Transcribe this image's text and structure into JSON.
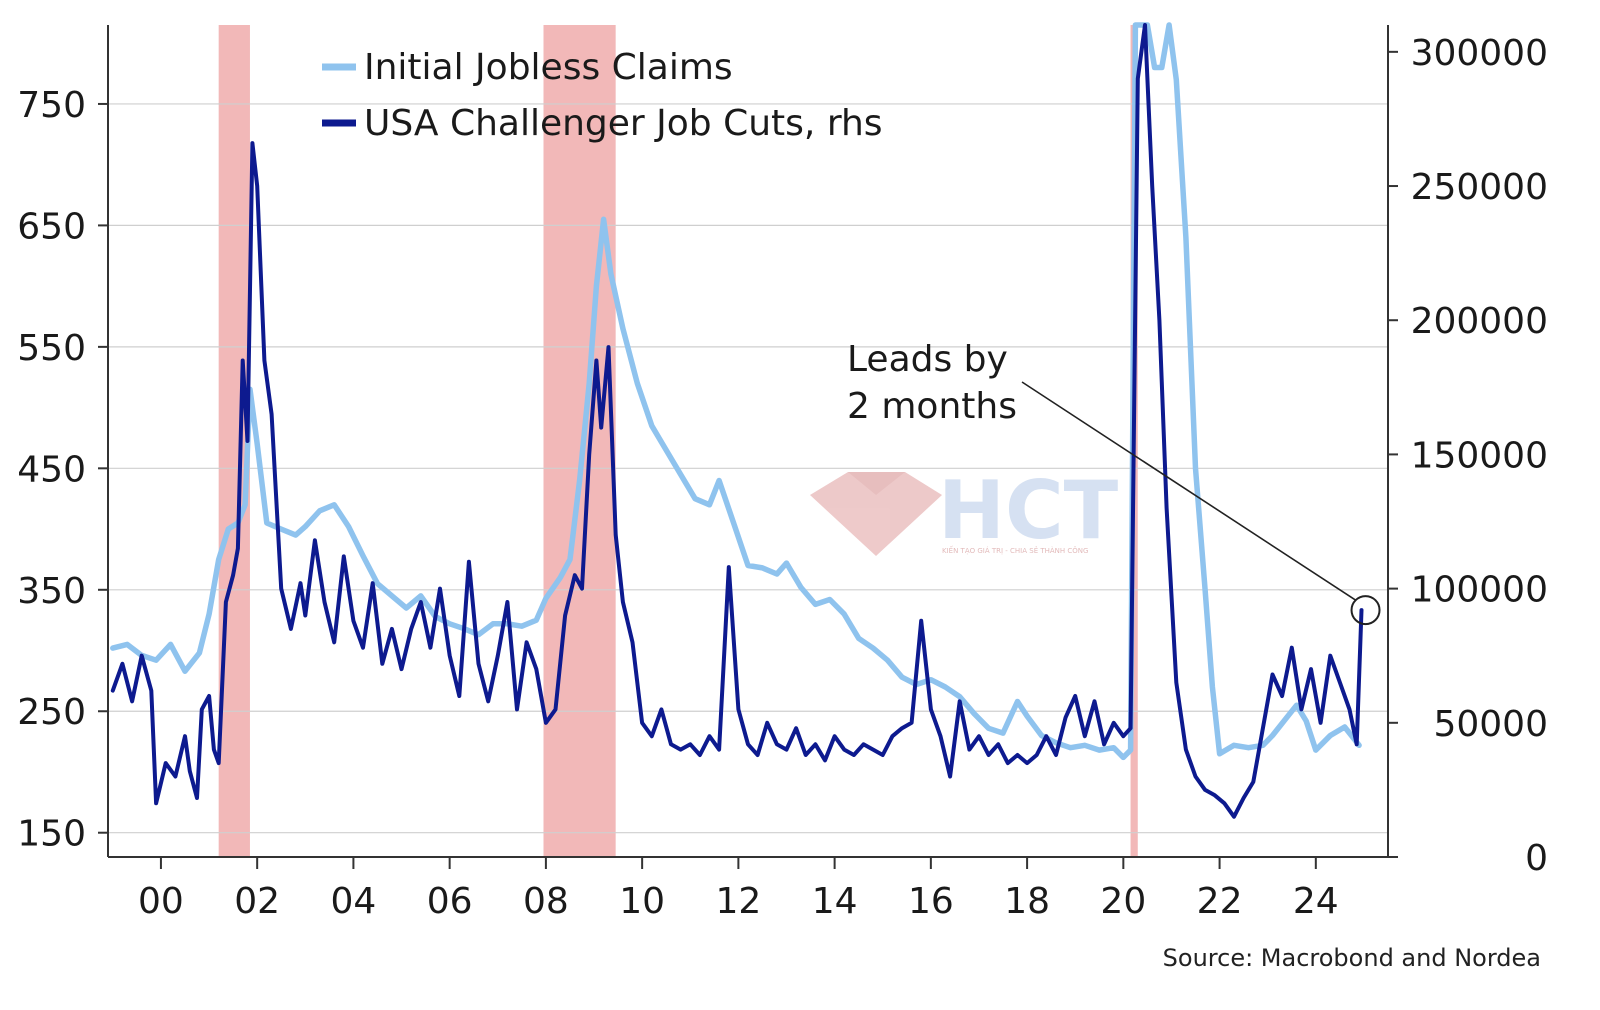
{
  "chart_data": {
    "type": "line",
    "title": "",
    "xlabel": "",
    "ylabel_left": "",
    "ylabel_right": "",
    "x_ticks": [
      "00",
      "02",
      "04",
      "06",
      "08",
      "10",
      "12",
      "14",
      "16",
      "18",
      "20",
      "22",
      "24"
    ],
    "y_left_ticks": [
      "750",
      "650",
      "550",
      "450",
      "350",
      "250",
      "150"
    ],
    "y_right_ticks": [
      "300000",
      "250000",
      "200000",
      "150000",
      "100000",
      "50000",
      "0"
    ],
    "ylim_left": [
      130,
      815
    ],
    "ylim_right": [
      0,
      310000
    ],
    "xlim": [
      1998.9,
      2025.5
    ],
    "grid": "horizontal",
    "legend_position": "top-left",
    "recession_shading": [
      [
        2001.2,
        2001.85
      ],
      [
        2007.95,
        2009.45
      ],
      [
        2020.15,
        2020.3
      ]
    ],
    "series": [
      {
        "name": "Initial Jobless Claims",
        "axis": "left",
        "color": "#8fc3ee",
        "points": [
          [
            1999.0,
            302
          ],
          [
            1999.3,
            305
          ],
          [
            1999.6,
            296
          ],
          [
            1999.9,
            292
          ],
          [
            2000.2,
            305
          ],
          [
            2000.5,
            283
          ],
          [
            2000.8,
            298
          ],
          [
            2001.0,
            330
          ],
          [
            2001.2,
            375
          ],
          [
            2001.4,
            400
          ],
          [
            2001.6,
            405
          ],
          [
            2001.75,
            420
          ],
          [
            2001.85,
            515
          ],
          [
            2002.0,
            470
          ],
          [
            2002.2,
            405
          ],
          [
            2002.5,
            400
          ],
          [
            2002.8,
            395
          ],
          [
            2003.0,
            402
          ],
          [
            2003.3,
            415
          ],
          [
            2003.6,
            420
          ],
          [
            2003.9,
            402
          ],
          [
            2004.2,
            378
          ],
          [
            2004.5,
            355
          ],
          [
            2004.8,
            345
          ],
          [
            2005.1,
            335
          ],
          [
            2005.4,
            345
          ],
          [
            2005.7,
            328
          ],
          [
            2006.0,
            322
          ],
          [
            2006.3,
            318
          ],
          [
            2006.6,
            313
          ],
          [
            2006.9,
            322
          ],
          [
            2007.2,
            322
          ],
          [
            2007.5,
            320
          ],
          [
            2007.8,
            325
          ],
          [
            2008.0,
            343
          ],
          [
            2008.3,
            360
          ],
          [
            2008.5,
            375
          ],
          [
            2008.7,
            440
          ],
          [
            2008.9,
            520
          ],
          [
            2009.05,
            600
          ],
          [
            2009.2,
            655
          ],
          [
            2009.35,
            610
          ],
          [
            2009.6,
            565
          ],
          [
            2009.9,
            520
          ],
          [
            2010.2,
            485
          ],
          [
            2010.5,
            465
          ],
          [
            2010.8,
            445
          ],
          [
            2011.1,
            425
          ],
          [
            2011.4,
            420
          ],
          [
            2011.6,
            440
          ],
          [
            2011.9,
            405
          ],
          [
            2012.2,
            370
          ],
          [
            2012.5,
            368
          ],
          [
            2012.8,
            363
          ],
          [
            2013.0,
            372
          ],
          [
            2013.3,
            352
          ],
          [
            2013.6,
            338
          ],
          [
            2013.9,
            342
          ],
          [
            2014.2,
            330
          ],
          [
            2014.5,
            310
          ],
          [
            2014.8,
            302
          ],
          [
            2015.1,
            292
          ],
          [
            2015.4,
            278
          ],
          [
            2015.7,
            272
          ],
          [
            2016.0,
            276
          ],
          [
            2016.3,
            270
          ],
          [
            2016.6,
            262
          ],
          [
            2016.9,
            248
          ],
          [
            2017.2,
            236
          ],
          [
            2017.5,
            232
          ],
          [
            2017.8,
            258
          ],
          [
            2018.0,
            246
          ],
          [
            2018.3,
            230
          ],
          [
            2018.6,
            224
          ],
          [
            2018.9,
            220
          ],
          [
            2019.2,
            222
          ],
          [
            2019.5,
            218
          ],
          [
            2019.8,
            220
          ],
          [
            2020.0,
            212
          ],
          [
            2020.15,
            218
          ],
          [
            2020.25,
            815
          ],
          [
            2020.5,
            815
          ],
          [
            2020.65,
            780
          ],
          [
            2020.8,
            780
          ],
          [
            2020.95,
            815
          ],
          [
            2021.1,
            770
          ],
          [
            2021.3,
            640
          ],
          [
            2021.5,
            450
          ],
          [
            2021.7,
            350
          ],
          [
            2021.85,
            270
          ],
          [
            2022.0,
            215
          ],
          [
            2022.3,
            222
          ],
          [
            2022.6,
            220
          ],
          [
            2022.9,
            222
          ],
          [
            2023.1,
            230
          ],
          [
            2023.4,
            245
          ],
          [
            2023.6,
            255
          ],
          [
            2023.8,
            242
          ],
          [
            2024.0,
            218
          ],
          [
            2024.3,
            230
          ],
          [
            2024.6,
            237
          ],
          [
            2024.9,
            222
          ]
        ]
      },
      {
        "name": "USA Challenger Job Cuts, rhs",
        "axis": "right",
        "color": "#0d1a8f",
        "points": [
          [
            1999.0,
            62000
          ],
          [
            1999.2,
            72000
          ],
          [
            1999.4,
            58000
          ],
          [
            1999.6,
            75000
          ],
          [
            1999.8,
            62000
          ],
          [
            1999.9,
            20000
          ],
          [
            2000.1,
            35000
          ],
          [
            2000.3,
            30000
          ],
          [
            2000.5,
            45000
          ],
          [
            2000.6,
            32000
          ],
          [
            2000.75,
            22000
          ],
          [
            2000.85,
            55000
          ],
          [
            2001.0,
            60000
          ],
          [
            2001.1,
            40000
          ],
          [
            2001.2,
            35000
          ],
          [
            2001.35,
            95000
          ],
          [
            2001.5,
            105000
          ],
          [
            2001.6,
            115000
          ],
          [
            2001.7,
            185000
          ],
          [
            2001.8,
            155000
          ],
          [
            2001.9,
            266000
          ],
          [
            2002.0,
            250000
          ],
          [
            2002.15,
            185000
          ],
          [
            2002.3,
            165000
          ],
          [
            2002.5,
            100000
          ],
          [
            2002.7,
            85000
          ],
          [
            2002.9,
            102000
          ],
          [
            2003.0,
            90000
          ],
          [
            2003.2,
            118000
          ],
          [
            2003.4,
            95000
          ],
          [
            2003.6,
            80000
          ],
          [
            2003.8,
            112000
          ],
          [
            2004.0,
            88000
          ],
          [
            2004.2,
            78000
          ],
          [
            2004.4,
            102000
          ],
          [
            2004.6,
            72000
          ],
          [
            2004.8,
            85000
          ],
          [
            2005.0,
            70000
          ],
          [
            2005.2,
            85000
          ],
          [
            2005.4,
            95000
          ],
          [
            2005.6,
            78000
          ],
          [
            2005.8,
            100000
          ],
          [
            2006.0,
            75000
          ],
          [
            2006.2,
            60000
          ],
          [
            2006.4,
            110000
          ],
          [
            2006.6,
            72000
          ],
          [
            2006.8,
            58000
          ],
          [
            2007.0,
            75000
          ],
          [
            2007.2,
            95000
          ],
          [
            2007.4,
            55000
          ],
          [
            2007.6,
            80000
          ],
          [
            2007.8,
            70000
          ],
          [
            2008.0,
            50000
          ],
          [
            2008.2,
            55000
          ],
          [
            2008.4,
            90000
          ],
          [
            2008.6,
            105000
          ],
          [
            2008.75,
            100000
          ],
          [
            2008.9,
            150000
          ],
          [
            2009.05,
            185000
          ],
          [
            2009.15,
            160000
          ],
          [
            2009.3,
            190000
          ],
          [
            2009.45,
            120000
          ],
          [
            2009.6,
            95000
          ],
          [
            2009.8,
            80000
          ],
          [
            2010.0,
            50000
          ],
          [
            2010.2,
            45000
          ],
          [
            2010.4,
            55000
          ],
          [
            2010.6,
            42000
          ],
          [
            2010.8,
            40000
          ],
          [
            2011.0,
            42000
          ],
          [
            2011.2,
            38000
          ],
          [
            2011.4,
            45000
          ],
          [
            2011.6,
            40000
          ],
          [
            2011.8,
            108000
          ],
          [
            2012.0,
            55000
          ],
          [
            2012.2,
            42000
          ],
          [
            2012.4,
            38000
          ],
          [
            2012.6,
            50000
          ],
          [
            2012.8,
            42000
          ],
          [
            2013.0,
            40000
          ],
          [
            2013.2,
            48000
          ],
          [
            2013.4,
            38000
          ],
          [
            2013.6,
            42000
          ],
          [
            2013.8,
            36000
          ],
          [
            2014.0,
            45000
          ],
          [
            2014.2,
            40000
          ],
          [
            2014.4,
            38000
          ],
          [
            2014.6,
            42000
          ],
          [
            2014.8,
            40000
          ],
          [
            2015.0,
            38000
          ],
          [
            2015.2,
            45000
          ],
          [
            2015.4,
            48000
          ],
          [
            2015.6,
            50000
          ],
          [
            2015.8,
            88000
          ],
          [
            2016.0,
            55000
          ],
          [
            2016.2,
            45000
          ],
          [
            2016.4,
            30000
          ],
          [
            2016.6,
            58000
          ],
          [
            2016.8,
            40000
          ],
          [
            2017.0,
            45000
          ],
          [
            2017.2,
            38000
          ],
          [
            2017.4,
            42000
          ],
          [
            2017.6,
            35000
          ],
          [
            2017.8,
            38000
          ],
          [
            2018.0,
            35000
          ],
          [
            2018.2,
            38000
          ],
          [
            2018.4,
            45000
          ],
          [
            2018.6,
            38000
          ],
          [
            2018.8,
            52000
          ],
          [
            2019.0,
            60000
          ],
          [
            2019.2,
            45000
          ],
          [
            2019.4,
            58000
          ],
          [
            2019.6,
            42000
          ],
          [
            2019.8,
            50000
          ],
          [
            2020.0,
            45000
          ],
          [
            2020.15,
            48000
          ],
          [
            2020.3,
            290000
          ],
          [
            2020.45,
            310000
          ],
          [
            2020.6,
            250000
          ],
          [
            2020.75,
            200000
          ],
          [
            2020.9,
            130000
          ],
          [
            2021.1,
            65000
          ],
          [
            2021.3,
            40000
          ],
          [
            2021.5,
            30000
          ],
          [
            2021.7,
            25000
          ],
          [
            2021.9,
            23000
          ],
          [
            2022.1,
            20000
          ],
          [
            2022.3,
            15000
          ],
          [
            2022.5,
            22000
          ],
          [
            2022.7,
            28000
          ],
          [
            2022.9,
            48000
          ],
          [
            2023.1,
            68000
          ],
          [
            2023.3,
            60000
          ],
          [
            2023.5,
            78000
          ],
          [
            2023.7,
            55000
          ],
          [
            2023.9,
            70000
          ],
          [
            2024.1,
            50000
          ],
          [
            2024.3,
            75000
          ],
          [
            2024.5,
            65000
          ],
          [
            2024.7,
            55000
          ],
          [
            2024.85,
            42000
          ],
          [
            2024.95,
            92000
          ]
        ]
      }
    ],
    "annotation": {
      "line1": "Leads by",
      "line2": "2 months",
      "target_x": 2024.95,
      "target_y_right": 92000
    },
    "source": "Source: Macrobond and Nordea"
  },
  "watermark": {
    "text": "HCT",
    "tagline": "KIẾN TẠO GIÁ TRỊ - CHIA SẺ THÀNH CÔNG"
  },
  "colors": {
    "recession": "#f2b8b8",
    "grid": "#cfcfcf",
    "axis": "#333333"
  }
}
